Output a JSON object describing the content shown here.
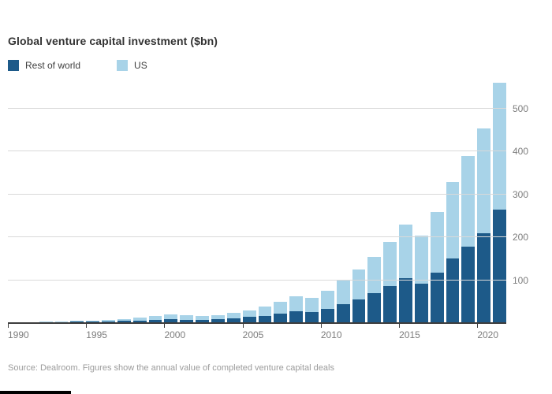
{
  "title": "Global venture capital investment ($bn)",
  "legend": [
    {
      "label": "Rest of world",
      "color": "#1d5a89"
    },
    {
      "label": "US",
      "color": "#a8d3e8"
    }
  ],
  "footer": {
    "source": "Source: Dealroom. Figures show the annual value of completed venture capital deals"
  },
  "colors": {
    "gridline": "#d9d9d9",
    "axis_line": "#3d3d3d",
    "tick_text": "#7d7d7d"
  },
  "chart_data": {
    "type": "bar",
    "stacked": true,
    "title": "Global venture capital investment ($bn)",
    "x": [
      1990,
      1991,
      1992,
      1993,
      1994,
      1995,
      1996,
      1997,
      1998,
      1999,
      2000,
      2001,
      2002,
      2003,
      2004,
      2005,
      2006,
      2007,
      2008,
      2009,
      2010,
      2011,
      2012,
      2013,
      2014,
      2015,
      2016,
      2017,
      2018,
      2019,
      2020,
      2021
    ],
    "series": [
      {
        "name": "Rest of world",
        "color": "#1d5a89",
        "values": [
          1,
          1,
          2,
          2,
          3,
          3,
          4,
          5,
          6,
          7,
          9,
          8,
          8,
          9,
          11,
          14,
          17,
          22,
          28,
          26,
          34,
          45,
          56,
          70,
          86,
          104,
          92,
          118,
          150,
          178,
          210,
          264
        ]
      },
      {
        "name": "US",
        "color": "#a8d3e8",
        "values": [
          1,
          1,
          1,
          2,
          2,
          3,
          4,
          5,
          7,
          9,
          11,
          10,
          9,
          10,
          13,
          16,
          21,
          28,
          34,
          32,
          41,
          55,
          69,
          85,
          104,
          126,
          113,
          142,
          180,
          212,
          245,
          296
        ]
      }
    ],
    "xticks": [
      1990,
      1995,
      2000,
      2005,
      2010,
      2015,
      2020
    ],
    "yticks": [
      100,
      200,
      300,
      400,
      500
    ],
    "ylim": [
      0,
      570
    ],
    "grid": true,
    "legend_position": "top-left",
    "y_axis_side": "right",
    "xlabel": "",
    "ylabel": ""
  }
}
